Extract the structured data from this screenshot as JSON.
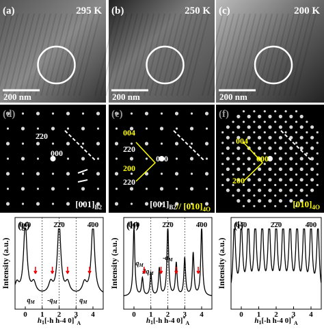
{
  "images": [
    {
      "label": "(a)",
      "temperature": "295 K",
      "scale_bar": "200 nm"
    },
    {
      "label": "(b)",
      "temperature": "250 K",
      "scale_bar": "200 nm"
    },
    {
      "label": "(c)",
      "temperature": "200 K",
      "scale_bar": "200 nm"
    }
  ],
  "diffraction": [
    {
      "label": "(d)",
      "spots": [
        "2̄20",
        "000"
      ],
      "zone": [
        {
          "text": "[001]",
          "sub": "B2"
        }
      ]
    },
    {
      "label": "(e)",
      "spots": [
        "004",
        "2̄20",
        "000",
        "200",
        "220"
      ],
      "zone": [
        {
          "text": "[001]",
          "sub": "B2"
        },
        {
          "text": "// [010]",
          "sub": "4O"
        }
      ]
    },
    {
      "label": "(f)",
      "spots": [
        "004",
        "000",
        "200"
      ],
      "zone": [
        {
          "text": "[010]",
          "sub": "4O"
        }
      ]
    }
  ],
  "profiles": [
    {
      "label": "(g)",
      "peaks": [
        "04̄0",
        "2̄2̄0",
        "4̄00"
      ],
      "annotations": [
        {
          "text": "q",
          "sub": "M"
        },
        {
          "text": "-q",
          "sub": "M"
        },
        {
          "text": "q",
          "sub": "M"
        }
      ],
      "xticks": [
        0,
        1,
        2,
        3,
        4
      ]
    },
    {
      "label": "(h)",
      "peaks": [
        "04̄0",
        "2̄2̄0",
        "4̄00"
      ],
      "annotations": [
        {
          "text": "q",
          "sub": "M"
        },
        {
          "text": "2q",
          "sub": "M"
        },
        {
          "text": "-q",
          "sub": "M"
        }
      ],
      "xticks": [
        0,
        1,
        2,
        3,
        4
      ]
    },
    {
      "label": "(i)",
      "peaks": [
        "04̄0",
        "2̄2̄0",
        "4̄00"
      ],
      "annotations": [],
      "xticks": [
        0,
        1,
        2,
        3,
        4
      ]
    }
  ],
  "y_label": "Intensity (a.u.)",
  "x_label": {
    "main": "h",
    "sub": "1",
    "rest": "[-h h-4 0]",
    "sup": "*",
    "sub2": "A"
  }
}
